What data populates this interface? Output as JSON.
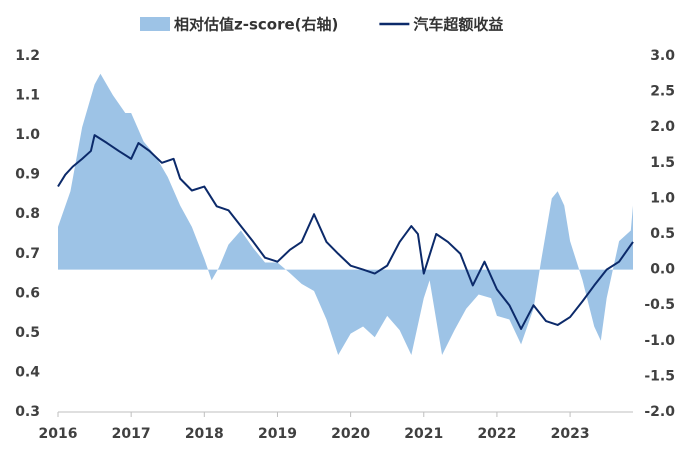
{
  "chart_data": {
    "type": "area-line",
    "xlim": [
      2016,
      2023.86
    ],
    "xticks": [
      2016,
      2017,
      2018,
      2019,
      2020,
      2021,
      2022,
      2023
    ],
    "ylim": [
      0.3,
      1.2
    ],
    "yticks": [
      {
        "value": 1.2,
        "label": "1.2"
      },
      {
        "value": 1.1,
        "label": "1.1"
      },
      {
        "value": 1,
        "label": "1.0"
      },
      0.9,
      0.8,
      0.7,
      0.6,
      0.5,
      0.4,
      0.3
    ],
    "y2lim": [
      -2,
      3
    ],
    "y2ticks": [
      {
        "value": 3,
        "label": "3.0"
      },
      2.5,
      {
        "value": 2,
        "label": "2.0"
      },
      1.5,
      {
        "value": 1,
        "label": "1.0"
      },
      0.5,
      {
        "value": 0,
        "label": "0.0"
      },
      -0.5,
      {
        "value": -1,
        "label": "-1.0"
      },
      -1.5,
      {
        "value": -2,
        "label": "-2.0"
      }
    ],
    "series": [
      {
        "name": "相对估值z-score(右轴)",
        "kind": "area",
        "axis": "y2",
        "color": "#9dc3e6",
        "x": [
          2016.0,
          2016.17,
          2016.33,
          2016.5,
          2016.58,
          2016.75,
          2016.92,
          2017.0,
          2017.17,
          2017.33,
          2017.5,
          2017.67,
          2017.83,
          2018.0,
          2018.1,
          2018.2,
          2018.33,
          2018.5,
          2018.67,
          2018.83,
          2019.0,
          2019.17,
          2019.33,
          2019.5,
          2019.67,
          2019.83,
          2020.0,
          2020.17,
          2020.33,
          2020.5,
          2020.67,
          2020.83,
          2021.0,
          2021.08,
          2021.25,
          2021.42,
          2021.58,
          2021.75,
          2021.92,
          2022.0,
          2022.17,
          2022.33,
          2022.5,
          2022.6,
          2022.75,
          2022.83,
          2022.92,
          2023.0,
          2023.17,
          2023.33,
          2023.42,
          2023.5,
          2023.67,
          2023.83,
          2023.86
        ],
        "values": [
          0.6,
          1.1,
          2.0,
          2.6,
          2.75,
          2.45,
          2.2,
          2.2,
          1.8,
          1.6,
          1.3,
          0.9,
          0.6,
          0.15,
          -0.15,
          0.03,
          0.35,
          0.55,
          0.3,
          0.1,
          0.1,
          -0.05,
          -0.2,
          -0.3,
          -0.7,
          -1.2,
          -0.9,
          -0.8,
          -0.95,
          -0.65,
          -0.85,
          -1.2,
          -0.4,
          -0.15,
          -1.2,
          -0.85,
          -0.55,
          -0.35,
          -0.4,
          -0.65,
          -0.7,
          -1.05,
          -0.55,
          0.1,
          1.0,
          1.1,
          0.9,
          0.4,
          -0.15,
          -0.8,
          -1.0,
          -0.4,
          0.4,
          0.55,
          0.9
        ]
      },
      {
        "name": "汽车超额收益",
        "kind": "line",
        "axis": "y",
        "color": "#0c2a6a",
        "x": [
          2016.0,
          2016.1,
          2016.2,
          2016.33,
          2016.45,
          2016.5,
          2016.67,
          2016.83,
          2017.0,
          2017.1,
          2017.25,
          2017.42,
          2017.58,
          2017.67,
          2017.83,
          2018.0,
          2018.17,
          2018.33,
          2018.5,
          2018.67,
          2018.83,
          2019.0,
          2019.17,
          2019.33,
          2019.5,
          2019.67,
          2019.83,
          2020.0,
          2020.17,
          2020.33,
          2020.5,
          2020.67,
          2020.83,
          2020.92,
          2021.0,
          2021.17,
          2021.33,
          2021.5,
          2021.67,
          2021.83,
          2022.0,
          2022.17,
          2022.33,
          2022.5,
          2022.67,
          2022.83,
          2023.0,
          2023.17,
          2023.33,
          2023.5,
          2023.67,
          2023.86
        ],
        "values": [
          0.87,
          0.9,
          0.92,
          0.94,
          0.96,
          1.0,
          0.98,
          0.96,
          0.94,
          0.98,
          0.96,
          0.93,
          0.94,
          0.89,
          0.86,
          0.87,
          0.82,
          0.81,
          0.77,
          0.73,
          0.69,
          0.68,
          0.71,
          0.73,
          0.8,
          0.73,
          0.7,
          0.67,
          0.66,
          0.65,
          0.67,
          0.73,
          0.77,
          0.75,
          0.65,
          0.75,
          0.73,
          0.7,
          0.62,
          0.68,
          0.61,
          0.57,
          0.51,
          0.57,
          0.53,
          0.52,
          0.54,
          0.58,
          0.62,
          0.66,
          0.68,
          0.73
        ]
      }
    ]
  }
}
